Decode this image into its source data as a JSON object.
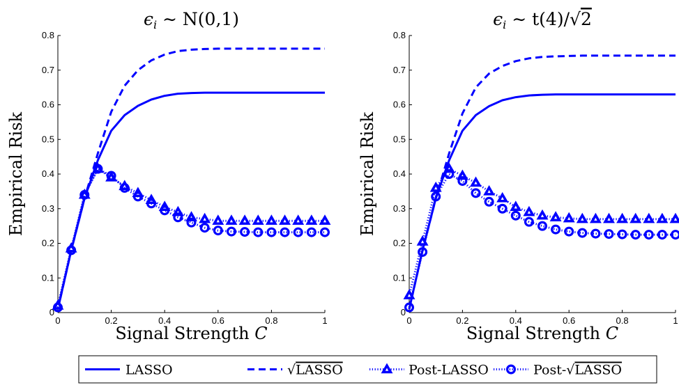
{
  "chart_data": [
    {
      "type": "line",
      "title": "ϵ_i ∼ N(0,1)",
      "title_parts": {
        "eps": "ϵ",
        "sub": "i",
        "sim": " ∼ ",
        "rest": "N(0,1)"
      },
      "xlabel": "Signal Strength",
      "xlabel_var": "C",
      "ylabel": "Empirical Risk",
      "xlim": [
        0,
        1
      ],
      "ylim": [
        0,
        0.8
      ],
      "xticks": [
        "0",
        "0.2",
        "0.4",
        "0.6",
        "0.8",
        "1"
      ],
      "yticks": [
        "0",
        "0.1",
        "0.2",
        "0.3",
        "0.4",
        "0.5",
        "0.6",
        "0.7",
        "0.8"
      ],
      "grid": false,
      "series": [
        {
          "name": "LASSO",
          "color": "#0000ff",
          "style": "solid",
          "marker": "none",
          "x": [
            0,
            0.05,
            0.1,
            0.15,
            0.2,
            0.25,
            0.3,
            0.35,
            0.4,
            0.45,
            0.5,
            0.55,
            0.6,
            0.65,
            0.7,
            0.75,
            0.8,
            0.85,
            0.9,
            0.95,
            1.0
          ],
          "y": [
            0.01,
            0.18,
            0.33,
            0.44,
            0.525,
            0.57,
            0.597,
            0.615,
            0.626,
            0.632,
            0.634,
            0.635,
            0.635,
            0.635,
            0.635,
            0.635,
            0.635,
            0.635,
            0.635,
            0.635,
            0.635
          ]
        },
        {
          "name": "√LASSO",
          "color": "#0000ff",
          "style": "dashed",
          "marker": "none",
          "x": [
            0,
            0.05,
            0.1,
            0.15,
            0.2,
            0.25,
            0.3,
            0.35,
            0.4,
            0.45,
            0.5,
            0.55,
            0.6,
            0.65,
            0.7,
            0.75,
            0.8,
            0.85,
            0.9,
            0.95,
            1.0
          ],
          "y": [
            0.01,
            0.18,
            0.33,
            0.46,
            0.58,
            0.655,
            0.7,
            0.728,
            0.745,
            0.755,
            0.759,
            0.761,
            0.762,
            0.762,
            0.762,
            0.762,
            0.762,
            0.762,
            0.762,
            0.762,
            0.762
          ]
        },
        {
          "name": "Post-LASSO",
          "color": "#0000ff",
          "style": "dotted",
          "marker": "triangle",
          "x": [
            0,
            0.05,
            0.1,
            0.15,
            0.2,
            0.25,
            0.3,
            0.35,
            0.4,
            0.45,
            0.5,
            0.55,
            0.6,
            0.65,
            0.7,
            0.75,
            0.8,
            0.85,
            0.9,
            0.95,
            1.0
          ],
          "y": [
            0.02,
            0.185,
            0.34,
            0.415,
            0.39,
            0.365,
            0.345,
            0.325,
            0.305,
            0.29,
            0.275,
            0.27,
            0.265,
            0.265,
            0.265,
            0.265,
            0.265,
            0.265,
            0.265,
            0.265,
            0.265
          ]
        },
        {
          "name": "Post-√LASSO",
          "color": "#0000ff",
          "style": "dotted",
          "marker": "circle",
          "x": [
            0,
            0.05,
            0.1,
            0.15,
            0.2,
            0.25,
            0.3,
            0.35,
            0.4,
            0.45,
            0.5,
            0.55,
            0.6,
            0.65,
            0.7,
            0.75,
            0.8,
            0.85,
            0.9,
            0.95,
            1.0
          ],
          "y": [
            0.015,
            0.18,
            0.34,
            0.415,
            0.395,
            0.36,
            0.335,
            0.315,
            0.295,
            0.275,
            0.26,
            0.245,
            0.237,
            0.234,
            0.233,
            0.232,
            0.232,
            0.232,
            0.232,
            0.232,
            0.232
          ]
        }
      ]
    },
    {
      "type": "line",
      "title": "ϵ_i ∼ t(4)/√2",
      "title_parts": {
        "eps": "ϵ",
        "sub": "i",
        "sim": " ∼ ",
        "rest": "t(4)/",
        "sqrt_arg": "2"
      },
      "xlabel": "Signal Strength",
      "xlabel_var": "C",
      "ylabel": "Empirical Risk",
      "xlim": [
        0,
        1
      ],
      "ylim": [
        0,
        0.8
      ],
      "xticks": [
        "0",
        "0.2",
        "0.4",
        "0.6",
        "0.8",
        "1"
      ],
      "yticks": [
        "0",
        "0.1",
        "0.2",
        "0.3",
        "0.4",
        "0.5",
        "0.6",
        "0.7",
        "0.8"
      ],
      "grid": false,
      "series": [
        {
          "name": "LASSO",
          "color": "#0000ff",
          "style": "solid",
          "marker": "none",
          "x": [
            0,
            0.05,
            0.1,
            0.15,
            0.2,
            0.25,
            0.3,
            0.35,
            0.4,
            0.45,
            0.5,
            0.55,
            0.6,
            0.65,
            0.7,
            0.75,
            0.8,
            0.85,
            0.9,
            0.95,
            1.0
          ],
          "y": [
            0.01,
            0.18,
            0.33,
            0.44,
            0.525,
            0.57,
            0.596,
            0.613,
            0.622,
            0.627,
            0.629,
            0.63,
            0.63,
            0.63,
            0.63,
            0.63,
            0.63,
            0.63,
            0.63,
            0.63,
            0.63
          ]
        },
        {
          "name": "√LASSO",
          "color": "#0000ff",
          "style": "dashed",
          "marker": "none",
          "x": [
            0,
            0.05,
            0.1,
            0.15,
            0.2,
            0.25,
            0.3,
            0.35,
            0.4,
            0.45,
            0.5,
            0.55,
            0.6,
            0.65,
            0.7,
            0.75,
            0.8,
            0.85,
            0.9,
            0.95,
            1.0
          ],
          "y": [
            0.01,
            0.18,
            0.33,
            0.46,
            0.575,
            0.65,
            0.69,
            0.712,
            0.726,
            0.734,
            0.738,
            0.74,
            0.741,
            0.742,
            0.742,
            0.742,
            0.742,
            0.742,
            0.742,
            0.742,
            0.742
          ]
        },
        {
          "name": "Post-LASSO",
          "color": "#0000ff",
          "style": "dotted",
          "marker": "triangle",
          "x": [
            0,
            0.05,
            0.1,
            0.15,
            0.2,
            0.25,
            0.3,
            0.35,
            0.4,
            0.45,
            0.5,
            0.55,
            0.6,
            0.65,
            0.7,
            0.75,
            0.8,
            0.85,
            0.9,
            0.95,
            1.0
          ],
          "y": [
            0.05,
            0.205,
            0.36,
            0.415,
            0.395,
            0.375,
            0.35,
            0.33,
            0.305,
            0.29,
            0.28,
            0.275,
            0.272,
            0.27,
            0.27,
            0.27,
            0.27,
            0.27,
            0.27,
            0.27,
            0.27
          ]
        },
        {
          "name": "Post-√LASSO",
          "color": "#0000ff",
          "style": "dotted",
          "marker": "circle",
          "x": [
            0,
            0.05,
            0.1,
            0.15,
            0.2,
            0.25,
            0.3,
            0.35,
            0.4,
            0.45,
            0.5,
            0.55,
            0.6,
            0.65,
            0.7,
            0.75,
            0.8,
            0.85,
            0.9,
            0.95,
            1.0
          ],
          "y": [
            0.015,
            0.175,
            0.335,
            0.4,
            0.38,
            0.345,
            0.32,
            0.3,
            0.28,
            0.262,
            0.25,
            0.24,
            0.234,
            0.23,
            0.228,
            0.227,
            0.226,
            0.225,
            0.225,
            0.225,
            0.225
          ]
        }
      ]
    }
  ],
  "legend": {
    "placement": "bottom",
    "entries": [
      {
        "label": "LASSO",
        "style": "solid",
        "marker": "none"
      },
      {
        "label": "LASSO",
        "prefix": "√",
        "style": "dashed",
        "marker": "none"
      },
      {
        "label": "Post-LASSO",
        "style": "dotted",
        "marker": "triangle"
      },
      {
        "label": "LASSO",
        "prefix": "Post-√",
        "style": "dotted",
        "marker": "circle"
      }
    ]
  },
  "colors": {
    "series": "#0000ff",
    "axes": "#000000"
  }
}
